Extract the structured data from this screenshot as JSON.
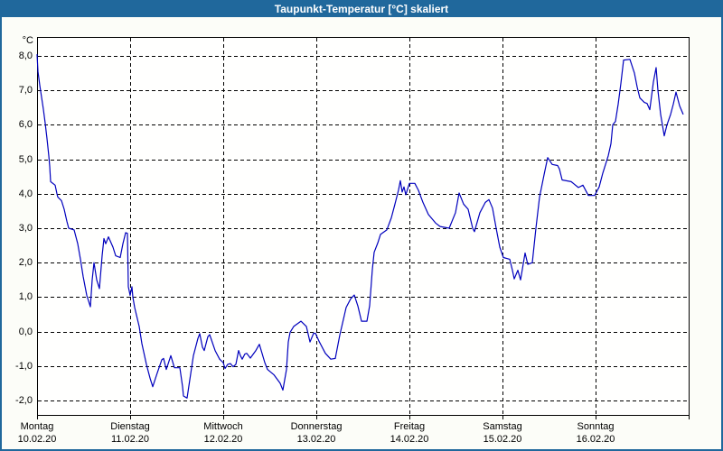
{
  "window": {
    "title": "Taupunkt-Temperatur [°C] skaliert"
  },
  "colors": {
    "titlebar_bg": "#20689c",
    "titlebar_text": "#ffffff",
    "frame_border": "#20689c",
    "page_bg": "#fcfdf8",
    "plot_bg": "#fffffe",
    "grid": "#000000",
    "axis": "#000000",
    "line": "#0000bd",
    "text": "#000000"
  },
  "chart_data": {
    "type": "line",
    "title": "Taupunkt-Temperatur [°C] skaliert",
    "legend": "none",
    "grid": "dashed",
    "y_axis": {
      "unit_label": "°C",
      "tick_values": [
        8,
        7,
        6,
        5,
        4,
        3,
        2,
        1,
        0,
        -1,
        -2
      ],
      "tick_labels": [
        "8,0",
        "7,0",
        "6,0",
        "5,0",
        "4,0",
        "3,0",
        "2,0",
        "1,0",
        "0,0",
        "-1,0",
        "-2,0"
      ],
      "view_min": -2.42,
      "view_max": 8.55
    },
    "x_axis": {
      "unit": "days from Monday 10.02.20 00:00",
      "range_days": 7,
      "days": [
        {
          "name": "Montag",
          "date": "10.02.20"
        },
        {
          "name": "Dienstag",
          "date": "11.02.20"
        },
        {
          "name": "Mittwoch",
          "date": "12.02.20"
        },
        {
          "name": "Donnerstag",
          "date": "13.02.20"
        },
        {
          "name": "Freitag",
          "date": "14.02.20"
        },
        {
          "name": "Samstag",
          "date": "15.02.20"
        },
        {
          "name": "Sonntag",
          "date": "16.02.20"
        }
      ]
    },
    "series": [
      {
        "name": "Taupunkt-Temperatur [°C]",
        "color": "#0000bd",
        "points": [
          [
            0.0,
            8.05
          ],
          [
            0.01,
            7.55
          ],
          [
            0.029,
            7.15
          ],
          [
            0.049,
            6.8
          ],
          [
            0.068,
            6.45
          ],
          [
            0.087,
            6.05
          ],
          [
            0.107,
            5.6
          ],
          [
            0.126,
            5.1
          ],
          [
            0.136,
            4.8
          ],
          [
            0.146,
            4.35
          ],
          [
            0.194,
            4.25
          ],
          [
            0.214,
            4.0
          ],
          [
            0.223,
            3.9
          ],
          [
            0.262,
            3.8
          ],
          [
            0.291,
            3.55
          ],
          [
            0.32,
            3.2
          ],
          [
            0.34,
            3.0
          ],
          [
            0.398,
            2.95
          ],
          [
            0.437,
            2.55
          ],
          [
            0.466,
            2.1
          ],
          [
            0.495,
            1.6
          ],
          [
            0.534,
            1.05
          ],
          [
            0.573,
            0.72
          ],
          [
            0.592,
            1.5
          ],
          [
            0.612,
            2.0
          ],
          [
            0.641,
            1.5
          ],
          [
            0.67,
            1.25
          ],
          [
            0.699,
            2.2
          ],
          [
            0.718,
            2.7
          ],
          [
            0.738,
            2.55
          ],
          [
            0.767,
            2.75
          ],
          [
            0.816,
            2.45
          ],
          [
            0.845,
            2.2
          ],
          [
            0.893,
            2.15
          ],
          [
            0.922,
            2.55
          ],
          [
            0.951,
            2.87
          ],
          [
            0.971,
            2.85
          ],
          [
            0.981,
            1.3
          ],
          [
            1.0,
            1.05
          ],
          [
            1.019,
            1.3
          ],
          [
            1.029,
            1.0
          ],
          [
            1.049,
            0.7
          ],
          [
            1.097,
            0.15
          ],
          [
            1.126,
            -0.35
          ],
          [
            1.175,
            -0.95
          ],
          [
            1.214,
            -1.35
          ],
          [
            1.243,
            -1.6
          ],
          [
            1.291,
            -1.2
          ],
          [
            1.34,
            -0.82
          ],
          [
            1.359,
            -0.78
          ],
          [
            1.388,
            -1.1
          ],
          [
            1.437,
            -0.7
          ],
          [
            1.476,
            -1.05
          ],
          [
            1.534,
            -1.05
          ],
          [
            1.563,
            -1.6
          ],
          [
            1.573,
            -1.87
          ],
          [
            1.612,
            -1.93
          ],
          [
            1.641,
            -1.4
          ],
          [
            1.68,
            -0.7
          ],
          [
            1.728,
            -0.2
          ],
          [
            1.748,
            -0.06
          ],
          [
            1.777,
            -0.45
          ],
          [
            1.796,
            -0.55
          ],
          [
            1.835,
            -0.15
          ],
          [
            1.854,
            -0.09
          ],
          [
            1.913,
            -0.55
          ],
          [
            1.961,
            -0.8
          ],
          [
            2.0,
            -0.9
          ],
          [
            2.019,
            -1.07
          ],
          [
            2.049,
            -0.95
          ],
          [
            2.078,
            -0.93
          ],
          [
            2.107,
            -1.02
          ],
          [
            2.136,
            -0.95
          ],
          [
            2.165,
            -0.55
          ],
          [
            2.184,
            -0.7
          ],
          [
            2.204,
            -0.8
          ],
          [
            2.233,
            -0.65
          ],
          [
            2.252,
            -0.63
          ],
          [
            2.291,
            -0.77
          ],
          [
            2.35,
            -0.55
          ],
          [
            2.388,
            -0.37
          ],
          [
            2.447,
            -0.9
          ],
          [
            2.476,
            -1.1
          ],
          [
            2.544,
            -1.25
          ],
          [
            2.612,
            -1.5
          ],
          [
            2.641,
            -1.7
          ],
          [
            2.68,
            -1.1
          ],
          [
            2.699,
            -0.3
          ],
          [
            2.718,
            -0.02
          ],
          [
            2.757,
            0.15
          ],
          [
            2.835,
            0.3
          ],
          [
            2.893,
            0.15
          ],
          [
            2.932,
            -0.3
          ],
          [
            2.971,
            -0.05
          ],
          [
            2.99,
            -0.05
          ],
          [
            3.029,
            -0.28
          ],
          [
            3.097,
            -0.63
          ],
          [
            3.155,
            -0.8
          ],
          [
            3.204,
            -0.78
          ],
          [
            3.252,
            -0.1
          ],
          [
            3.32,
            0.7
          ],
          [
            3.369,
            0.95
          ],
          [
            3.408,
            1.06
          ],
          [
            3.447,
            0.74
          ],
          [
            3.485,
            0.3
          ],
          [
            3.544,
            0.3
          ],
          [
            3.573,
            0.75
          ],
          [
            3.602,
            1.8
          ],
          [
            3.621,
            2.3
          ],
          [
            3.66,
            2.57
          ],
          [
            3.689,
            2.82
          ],
          [
            3.757,
            2.95
          ],
          [
            3.806,
            3.3
          ],
          [
            3.845,
            3.7
          ],
          [
            3.883,
            4.1
          ],
          [
            3.903,
            4.38
          ],
          [
            3.922,
            4.05
          ],
          [
            3.942,
            4.2
          ],
          [
            3.961,
            3.97
          ],
          [
            4.0,
            4.3
          ],
          [
            4.058,
            4.3
          ],
          [
            4.097,
            4.1
          ],
          [
            4.146,
            3.75
          ],
          [
            4.204,
            3.4
          ],
          [
            4.282,
            3.15
          ],
          [
            4.33,
            3.05
          ],
          [
            4.427,
            3.0
          ],
          [
            4.495,
            3.45
          ],
          [
            4.534,
            4.02
          ],
          [
            4.583,
            3.7
          ],
          [
            4.631,
            3.55
          ],
          [
            4.68,
            3.0
          ],
          [
            4.699,
            2.9
          ],
          [
            4.757,
            3.45
          ],
          [
            4.816,
            3.75
          ],
          [
            4.854,
            3.83
          ],
          [
            4.893,
            3.58
          ],
          [
            4.932,
            3.0
          ],
          [
            4.971,
            2.45
          ],
          [
            5.01,
            2.15
          ],
          [
            5.078,
            2.1
          ],
          [
            5.107,
            1.78
          ],
          [
            5.126,
            1.53
          ],
          [
            5.165,
            1.78
          ],
          [
            5.194,
            1.5
          ],
          [
            5.243,
            2.28
          ],
          [
            5.272,
            1.95
          ],
          [
            5.32,
            2.0
          ],
          [
            5.359,
            3.0
          ],
          [
            5.398,
            3.9
          ],
          [
            5.447,
            4.55
          ],
          [
            5.485,
            5.05
          ],
          [
            5.534,
            4.85
          ],
          [
            5.592,
            4.82
          ],
          [
            5.612,
            4.72
          ],
          [
            5.641,
            4.4
          ],
          [
            5.738,
            4.35
          ],
          [
            5.816,
            4.18
          ],
          [
            5.864,
            4.25
          ],
          [
            5.922,
            3.95
          ],
          [
            5.99,
            3.95
          ],
          [
            6.039,
            4.2
          ],
          [
            6.078,
            4.6
          ],
          [
            6.136,
            5.1
          ],
          [
            6.165,
            5.45
          ],
          [
            6.184,
            6.0
          ],
          [
            6.214,
            6.1
          ],
          [
            6.243,
            6.6
          ],
          [
            6.272,
            7.2
          ],
          [
            6.301,
            7.88
          ],
          [
            6.369,
            7.9
          ],
          [
            6.417,
            7.5
          ],
          [
            6.447,
            7.1
          ],
          [
            6.476,
            6.78
          ],
          [
            6.524,
            6.65
          ],
          [
            6.553,
            6.62
          ],
          [
            6.583,
            6.44
          ],
          [
            6.621,
            7.25
          ],
          [
            6.65,
            7.66
          ],
          [
            6.67,
            7.0
          ],
          [
            6.699,
            6.3
          ],
          [
            6.738,
            5.68
          ],
          [
            6.767,
            6.0
          ],
          [
            6.806,
            6.3
          ],
          [
            6.835,
            6.6
          ],
          [
            6.864,
            6.95
          ],
          [
            6.903,
            6.55
          ],
          [
            6.942,
            6.3
          ]
        ]
      }
    ]
  }
}
